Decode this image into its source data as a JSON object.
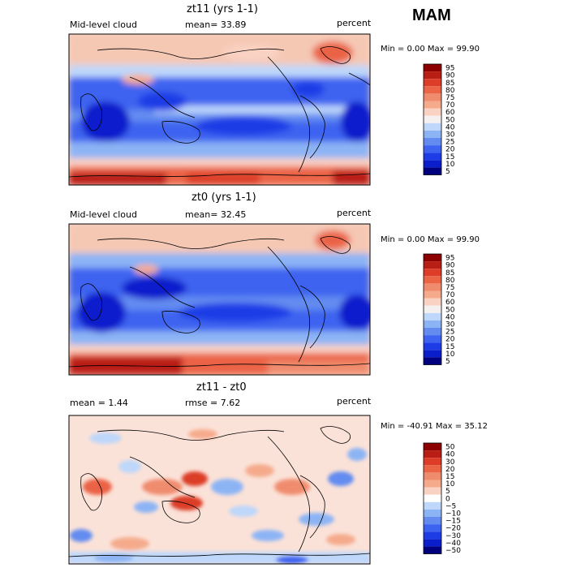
{
  "season": "MAM",
  "panels": [
    {
      "title": "zt11 (yrs 1-1)",
      "left_label": "Mid-level cloud",
      "mid_label": "mean=  33.89",
      "units": "percent",
      "minmax": "Min =   0.00 Max =  99.90",
      "colorbar_labels": [
        "95",
        "90",
        "85",
        "80",
        "75",
        "70",
        "60",
        "50",
        "40",
        "30",
        "25",
        "20",
        "15",
        "10",
        "5"
      ]
    },
    {
      "title": "zt0 (yrs 1-1)",
      "left_label": "Mid-level cloud",
      "mid_label": "mean=  32.45",
      "units": "percent",
      "minmax": "Min =   0.00 Max =  99.90",
      "colorbar_labels": [
        "95",
        "90",
        "85",
        "80",
        "75",
        "70",
        "60",
        "50",
        "40",
        "30",
        "25",
        "20",
        "15",
        "10",
        "5"
      ]
    },
    {
      "title": "zt11 - zt0",
      "left_label": "mean =   1.44",
      "mid_label": "rmse =   7.62",
      "units": "percent",
      "minmax": "Min = -40.91 Max =  35.12",
      "colorbar_labels": [
        "50",
        "40",
        "30",
        "20",
        "15",
        "10",
        "5",
        "0",
        "−5",
        "−10",
        "−15",
        "−20",
        "−30",
        "−40",
        "−50"
      ]
    }
  ],
  "chart_data": [
    {
      "type": "heatmap",
      "title": "zt11 (yrs 1-1)",
      "variable": "Mid-level cloud",
      "units": "percent",
      "mean": 33.89,
      "min": 0.0,
      "max": 99.9,
      "levels": [
        5,
        10,
        15,
        20,
        25,
        30,
        40,
        50,
        60,
        70,
        75,
        80,
        85,
        90,
        95
      ]
    },
    {
      "type": "heatmap",
      "title": "zt0 (yrs 1-1)",
      "variable": "Mid-level cloud",
      "units": "percent",
      "mean": 32.45,
      "min": 0.0,
      "max": 99.9,
      "levels": [
        5,
        10,
        15,
        20,
        25,
        30,
        40,
        50,
        60,
        70,
        75,
        80,
        85,
        90,
        95
      ]
    },
    {
      "type": "heatmap",
      "title": "zt11 - zt0",
      "units": "percent",
      "mean": 1.44,
      "rmse": 7.62,
      "min": -40.91,
      "max": 35.12,
      "levels": [
        -50,
        -40,
        -30,
        -20,
        -15,
        -10,
        -5,
        0,
        5,
        10,
        15,
        20,
        30,
        40,
        50
      ]
    }
  ],
  "colors": {
    "abs_scale": [
      "#00007f",
      "#0a1ecc",
      "#1e3ce6",
      "#3c64f0",
      "#648cf0",
      "#8cb4f5",
      "#bed7fa",
      "#f5f0f0",
      "#fad2c3",
      "#f5aa8c",
      "#f08c6e",
      "#eb6446",
      "#dc3c28",
      "#b91e14",
      "#8c0000"
    ],
    "diff_scale": [
      "#00007f",
      "#0a1ecc",
      "#1e3ce6",
      "#3c64f0",
      "#648cf0",
      "#8cb4f5",
      "#bed7fa",
      "#ffffff",
      "#fad2c3",
      "#f5aa8c",
      "#f08c6e",
      "#eb6446",
      "#dc3c28",
      "#b91e14",
      "#8c0000"
    ]
  }
}
